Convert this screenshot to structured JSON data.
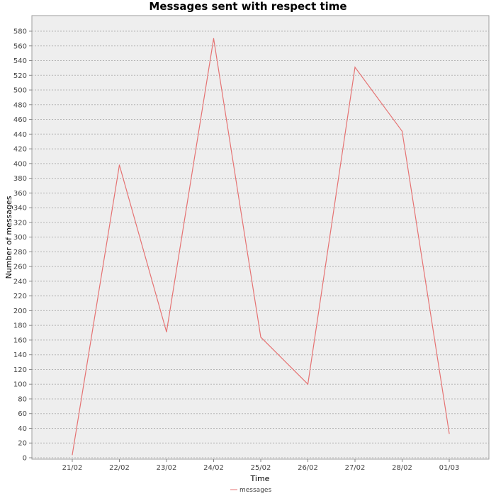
{
  "chart_data": {
    "type": "line",
    "title": "Messages sent with respect time",
    "xlabel": "Time",
    "ylabel": "Number of messages",
    "categories": [
      "21/02",
      "22/02",
      "23/02",
      "24/02",
      "25/02",
      "26/02",
      "27/02",
      "28/02",
      "01/03"
    ],
    "series": [
      {
        "name": "messages",
        "values": [
          4,
          398,
          171,
          570,
          164,
          100,
          531,
          444,
          33
        ],
        "color": "#e57373"
      }
    ],
    "ylim": [
      0,
      600
    ],
    "yticks": [
      0,
      20,
      40,
      60,
      80,
      100,
      120,
      140,
      160,
      180,
      200,
      220,
      240,
      260,
      280,
      300,
      320,
      340,
      360,
      380,
      400,
      420,
      440,
      460,
      480,
      500,
      520,
      540,
      560,
      580
    ],
    "grid": true,
    "legend_position": "bottom-center",
    "colors": {
      "plot_background": "#eeeeee",
      "gridline": "#b5b5b5",
      "line": "#e57373"
    }
  }
}
